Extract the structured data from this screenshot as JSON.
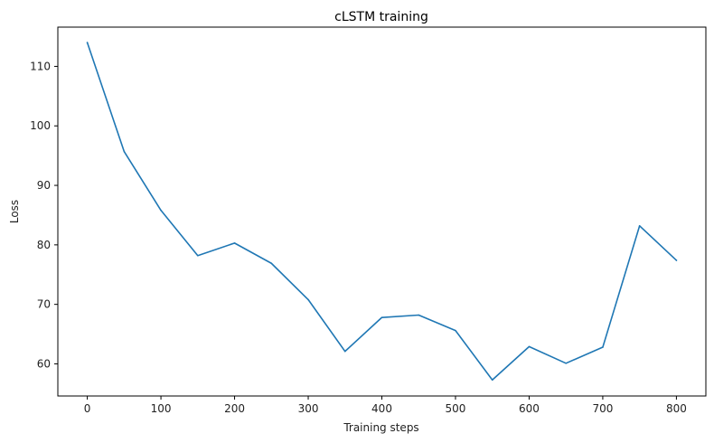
{
  "chart_data": {
    "type": "line",
    "title": "cLSTM training",
    "xlabel": "Training steps",
    "ylabel": "Loss",
    "xlim": [
      -40,
      840
    ],
    "ylim": [
      54.6,
      116.6
    ],
    "xticks": [
      0,
      100,
      200,
      300,
      400,
      500,
      600,
      700,
      800
    ],
    "yticks": [
      60,
      70,
      80,
      90,
      100,
      110
    ],
    "grid": false,
    "series": [
      {
        "color": "#1f77b4",
        "x": [
          0,
          50,
          100,
          150,
          200,
          250,
          300,
          350,
          400,
          450,
          500,
          550,
          600,
          650,
          700,
          750,
          800
        ],
        "y": [
          114.0,
          95.7,
          85.8,
          78.2,
          80.3,
          76.9,
          70.8,
          62.1,
          67.8,
          68.2,
          65.6,
          57.3,
          62.9,
          60.1,
          62.8,
          83.2,
          77.4
        ]
      }
    ]
  }
}
